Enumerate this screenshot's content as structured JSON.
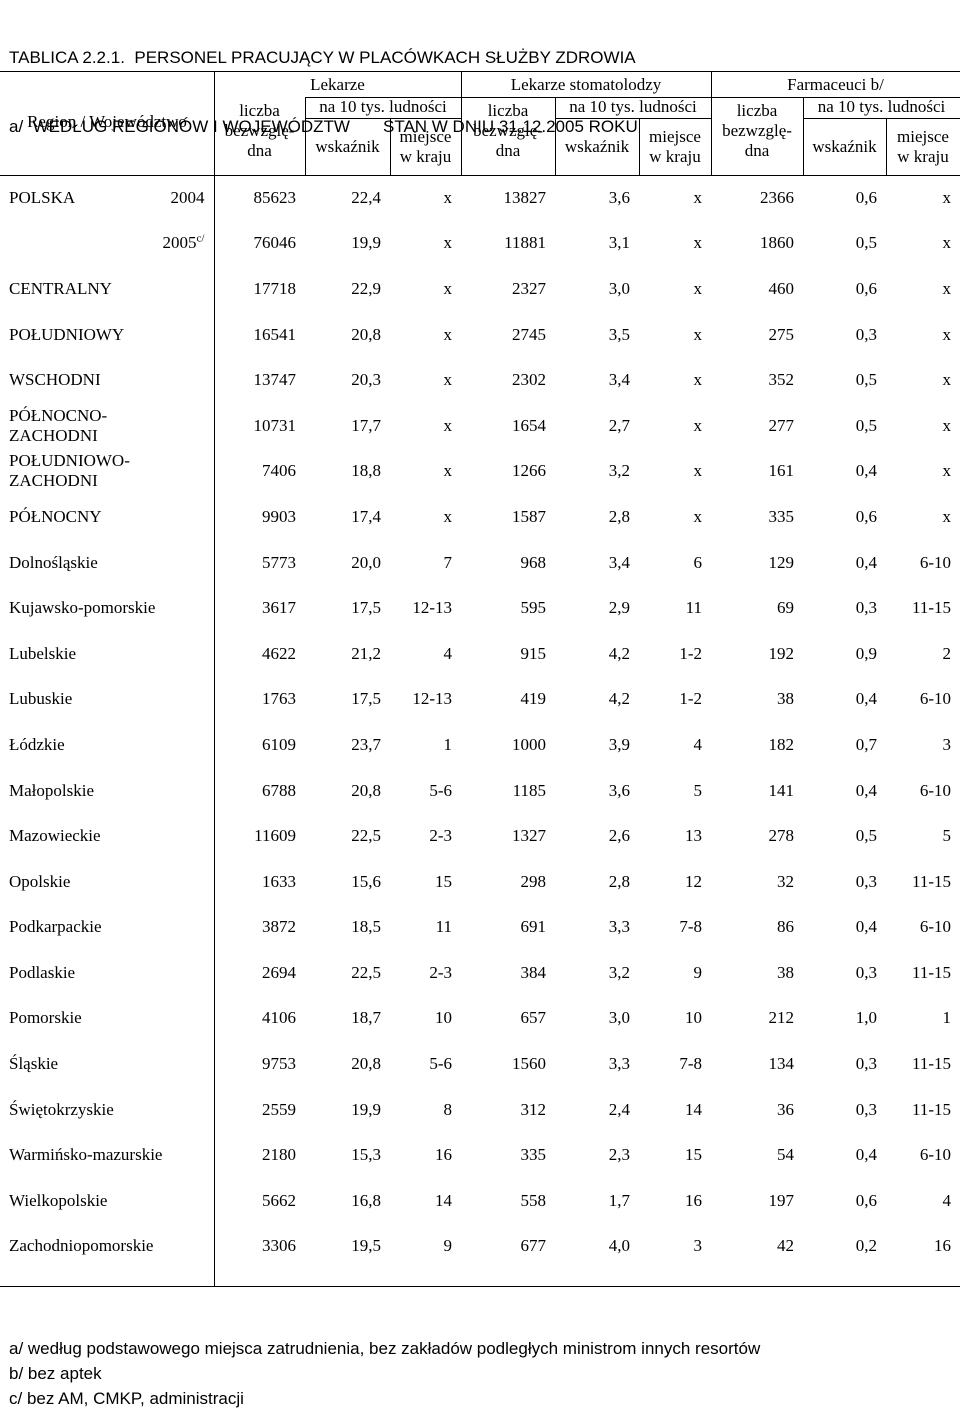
{
  "title": {
    "line1": "TABLICA 2.2.1.  PERSONEL PRACUJĄCY W PLACÓWKACH SŁUŻBY ZDROWIA",
    "line2": "a/  WEDŁUG REGIONÓW I WOJEWÓDZTW       STAN W DNIU 31.12.2005 ROKU"
  },
  "header": {
    "region": "Region / Województwo",
    "groups": [
      "Lekarze",
      "Lekarze stomatolodzy",
      "Farmaceuci b/"
    ],
    "liczba": "liczba",
    "bezwzgl": "bezwzglę-",
    "dna": "dna",
    "na10": "na 10 tys. ludności",
    "wskaznik": "wskaźnik",
    "miejsce": "miejsce",
    "wkraju": "w kraju"
  },
  "rows": [
    {
      "name": "POLSKA",
      "year": "2004",
      "sup": "",
      "v": [
        "85623",
        "22,4",
        "x",
        "13827",
        "3,6",
        "x",
        "2366",
        "0,6",
        "x"
      ]
    },
    {
      "name": "",
      "year": "2005",
      "sup": "c/",
      "v": [
        "76046",
        "19,9",
        "x",
        "11881",
        "3,1",
        "x",
        "1860",
        "0,5",
        "x"
      ]
    },
    {
      "name": "CENTRALNY",
      "name2": "",
      "year": "",
      "v": [
        "17718",
        "22,9",
        "x",
        "2327",
        "3,0",
        "x",
        "460",
        "0,6",
        "x"
      ]
    },
    {
      "name": "POŁUDNIOWY",
      "name2": "",
      "year": "",
      "v": [
        "16541",
        "20,8",
        "x",
        "2745",
        "3,5",
        "x",
        "275",
        "0,3",
        "x"
      ]
    },
    {
      "name": "WSCHODNI",
      "name2": "",
      "year": "",
      "v": [
        "13747",
        "20,3",
        "x",
        "2302",
        "3,4",
        "x",
        "352",
        "0,5",
        "x"
      ]
    },
    {
      "name": "PÓŁNOCNO-",
      "name2": "ZACHODNI",
      "year": "",
      "v": [
        "10731",
        "17,7",
        "x",
        "1654",
        "2,7",
        "x",
        "277",
        "0,5",
        "x"
      ]
    },
    {
      "name": "POŁUDNIOWO-",
      "name2": "ZACHODNI",
      "year": "",
      "v": [
        "7406",
        "18,8",
        "x",
        "1266",
        "3,2",
        "x",
        "161",
        "0,4",
        "x"
      ]
    },
    {
      "name": "PÓŁNOCNY",
      "name2": "",
      "year": "",
      "v": [
        "9903",
        "17,4",
        "x",
        "1587",
        "2,8",
        "x",
        "335",
        "0,6",
        "x"
      ]
    },
    {
      "name": "Dolnośląskie",
      "v": [
        "5773",
        "20,0",
        "7",
        "968",
        "3,4",
        "6",
        "129",
        "0,4",
        "6-10"
      ]
    },
    {
      "name": "Kujawsko-pomorskie",
      "v": [
        "3617",
        "17,5",
        "12-13",
        "595",
        "2,9",
        "11",
        "69",
        "0,3",
        "11-15"
      ]
    },
    {
      "name": "Lubelskie",
      "v": [
        "4622",
        "21,2",
        "4",
        "915",
        "4,2",
        "1-2",
        "192",
        "0,9",
        "2"
      ]
    },
    {
      "name": "Lubuskie",
      "v": [
        "1763",
        "17,5",
        "12-13",
        "419",
        "4,2",
        "1-2",
        "38",
        "0,4",
        "6-10"
      ]
    },
    {
      "name": "Łódzkie",
      "v": [
        "6109",
        "23,7",
        "1",
        "1000",
        "3,9",
        "4",
        "182",
        "0,7",
        "3"
      ]
    },
    {
      "name": "Małopolskie",
      "v": [
        "6788",
        "20,8",
        "5-6",
        "1185",
        "3,6",
        "5",
        "141",
        "0,4",
        "6-10"
      ]
    },
    {
      "name": "Mazowieckie",
      "v": [
        "11609",
        "22,5",
        "2-3",
        "1327",
        "2,6",
        "13",
        "278",
        "0,5",
        "5"
      ]
    },
    {
      "name": "Opolskie",
      "v": [
        "1633",
        "15,6",
        "15",
        "298",
        "2,8",
        "12",
        "32",
        "0,3",
        "11-15"
      ]
    },
    {
      "name": "Podkarpackie",
      "v": [
        "3872",
        "18,5",
        "11",
        "691",
        "3,3",
        "7-8",
        "86",
        "0,4",
        "6-10"
      ]
    },
    {
      "name": "Podlaskie",
      "v": [
        "2694",
        "22,5",
        "2-3",
        "384",
        "3,2",
        "9",
        "38",
        "0,3",
        "11-15"
      ]
    },
    {
      "name": "Pomorskie",
      "v": [
        "4106",
        "18,7",
        "10",
        "657",
        "3,0",
        "10",
        "212",
        "1,0",
        "1"
      ]
    },
    {
      "name": "Śląskie",
      "v": [
        "9753",
        "20,8",
        "5-6",
        "1560",
        "3,3",
        "7-8",
        "134",
        "0,3",
        "11-15"
      ]
    },
    {
      "name": "Świętokrzyskie",
      "v": [
        "2559",
        "19,9",
        "8",
        "312",
        "2,4",
        "14",
        "36",
        "0,3",
        "11-15"
      ]
    },
    {
      "name": "Warmińsko-mazurskie",
      "v": [
        "2180",
        "15,3",
        "16",
        "335",
        "2,3",
        "15",
        "54",
        "0,4",
        "6-10"
      ]
    },
    {
      "name": "Wielkopolskie",
      "v": [
        "5662",
        "16,8",
        "14",
        "558",
        "1,7",
        "16",
        "197",
        "0,6",
        "4"
      ]
    },
    {
      "name": "Zachodniopomorskie",
      "v": [
        "3306",
        "19,5",
        "9",
        "677",
        "4,0",
        "3",
        "42",
        "0,2",
        "16"
      ]
    }
  ],
  "notes": [
    "a/ według podstawowego miejsca zatrudnienia, bez zakładów podległych ministrom innych resortów",
    "b/ bez aptek",
    "c/  bez  AM, CMKP, administracji"
  ]
}
